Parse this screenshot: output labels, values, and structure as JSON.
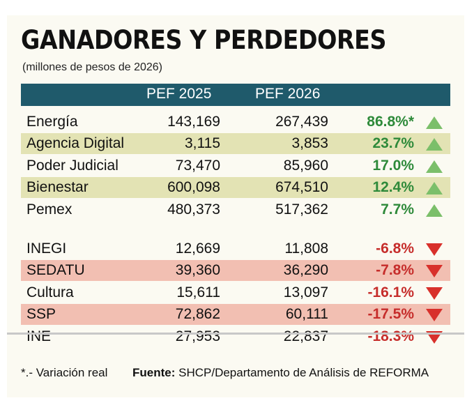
{
  "title": "GANADORES Y PERDEDORES",
  "subtitle": "(millones de pesos de 2026)",
  "columns": [
    "PEF 2025",
    "PEF 2026"
  ],
  "winners": [
    {
      "name": "Energía",
      "pef2025": "143,169",
      "pef2026": "267,439",
      "change": "86.8%*",
      "highlight": false
    },
    {
      "name": "Agencia Digital",
      "pef2025": "3,115",
      "pef2026": "3,853",
      "change": "23.7%",
      "highlight": true
    },
    {
      "name": "Poder Judicial",
      "pef2025": "73,470",
      "pef2026": "85,960",
      "change": "17.0%",
      "highlight": false
    },
    {
      "name": "Bienestar",
      "pef2025": "600,098",
      "pef2026": "674,510",
      "change": "12.4%",
      "highlight": true
    },
    {
      "name": "Pemex",
      "pef2025": "480,373",
      "pef2026": "517,362",
      "change": "7.7%",
      "highlight": false
    }
  ],
  "losers": [
    {
      "name": "INEGI",
      "pef2025": "12,669",
      "pef2026": "11,808",
      "change": "-6.8%",
      "highlight": false
    },
    {
      "name": "SEDATU",
      "pef2025": "39,360",
      "pef2026": "36,290",
      "change": "-7.8%",
      "highlight": true
    },
    {
      "name": "Cultura",
      "pef2025": "15,611",
      "pef2026": "13,097",
      "change": "-16.1%",
      "highlight": false
    },
    {
      "name": "SSP",
      "pef2025": "72,862",
      "pef2026": "60,111",
      "change": "-17.5%",
      "highlight": true
    },
    {
      "name": "INE",
      "pef2025": "27,953",
      "pef2026": "22,837",
      "change": "-18.3%",
      "highlight": false
    }
  ],
  "footnote": "*.- Variación real",
  "source_label": "Fuente:",
  "source_text": " SHCP/Departamento de Análisis de REFORMA",
  "colors": {
    "header": "#1f5a6b",
    "green_highlight": "#e3e3b4",
    "red_highlight": "#f2bfb2",
    "up": "#2e8a3a",
    "down": "#c62d2b",
    "up_arrow": "#7bbf6a",
    "down_arrow": "#d8302b"
  },
  "icons": {
    "up": "triangle-up-icon",
    "down": "triangle-down-icon"
  }
}
